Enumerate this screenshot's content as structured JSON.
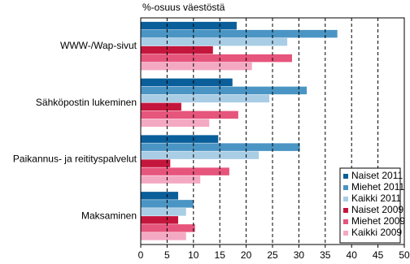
{
  "chart_data": {
    "type": "hbar",
    "title": "%-osuus väestöstä",
    "categories": [
      "WWW-/Wap-sivut",
      "Sähköpostin lukeminen",
      "Paikannus- ja reitityspalvelut",
      "Maksaminen"
    ],
    "series": [
      {
        "name": "Naiset 2011",
        "color": "#0a5e99",
        "values": [
          18.2,
          17.4,
          14.7,
          7.1
        ]
      },
      {
        "name": "Miehet 2011",
        "color": "#4a95c4",
        "values": [
          37.3,
          31.5,
          30.2,
          10.0
        ]
      },
      {
        "name": "Kaikki 2011",
        "color": "#a9cde5",
        "values": [
          27.8,
          24.4,
          22.4,
          8.6
        ]
      },
      {
        "name": "Naiset 2009",
        "color": "#c4163c",
        "values": [
          13.7,
          7.7,
          5.6,
          7.1
        ]
      },
      {
        "name": "Miehet 2009",
        "color": "#e6557c",
        "values": [
          28.7,
          18.5,
          16.8,
          10.3
        ]
      },
      {
        "name": "Kaikki 2009",
        "color": "#f4a9c3",
        "values": [
          21.1,
          13.0,
          11.3,
          8.6
        ]
      }
    ],
    "xlim": [
      0,
      50
    ],
    "xticks": [
      0,
      5,
      10,
      15,
      20,
      25,
      30,
      35,
      40,
      45,
      50
    ],
    "grid": true,
    "legend": "lower right"
  }
}
